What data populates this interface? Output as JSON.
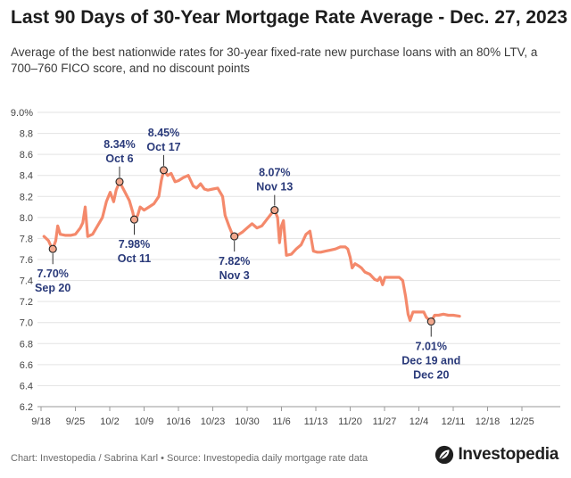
{
  "title": "Last 90 Days of 30-Year Mortgage Rate Average - Dec. 27, 2023",
  "subtitle": "Average of the best nationwide rates for 30-year fixed-rate new purchase loans with an 80% LTV, a 700–760 FICO score, and no discount points",
  "footer": {
    "source": "Chart: Investopedia / Sabrina Karl • Source: Investopedia daily mortgage rate data",
    "logo": "Investopedia",
    "logo_icon": "investopedia-leaf-icon"
  },
  "colors": {
    "line": "#f4896b",
    "annotation_text": "#2a3a7a",
    "marker_fill": "#f2a88d",
    "grid": "#e3e3e3"
  },
  "chart_data": {
    "type": "line",
    "title": "Last 90 Days of 30-Year Mortgage Rate Average - Dec. 27, 2023",
    "xlabel": "",
    "ylabel": "",
    "grid": true,
    "x_range_days": [
      0,
      101
    ],
    "ylim": [
      6.2,
      9.0
    ],
    "y_ticks": [
      6.2,
      6.4,
      6.6,
      6.8,
      7.0,
      7.2,
      7.4,
      7.6,
      7.8,
      8.0,
      8.2,
      8.4,
      8.6,
      8.8,
      9.0
    ],
    "y_tick_labels": [
      "6.2",
      "6.4",
      "6.6",
      "6.8",
      "7.0",
      "7.2",
      "7.4",
      "7.6",
      "7.8",
      "8.0",
      "8.2",
      "8.4",
      "8.6",
      "8.8",
      "9.0%"
    ],
    "x_ticks": [
      {
        "day": 0,
        "label": "9/18"
      },
      {
        "day": 7,
        "label": "9/25"
      },
      {
        "day": 14,
        "label": "10/2"
      },
      {
        "day": 21,
        "label": "10/9"
      },
      {
        "day": 28,
        "label": "10/16"
      },
      {
        "day": 35,
        "label": "10/23"
      },
      {
        "day": 42,
        "label": "10/30"
      },
      {
        "day": 49,
        "label": "11/6"
      },
      {
        "day": 56,
        "label": "11/13"
      },
      {
        "day": 63,
        "label": "11/20"
      },
      {
        "day": 70,
        "label": "11/27"
      },
      {
        "day": 77,
        "label": "12/4"
      },
      {
        "day": 84,
        "label": "12/11"
      },
      {
        "day": 91,
        "label": "12/18"
      },
      {
        "day": 98,
        "label": "12/25"
      }
    ],
    "series": [
      {
        "name": "30-Year Mortgage Rate Average",
        "points": [
          [
            0.6,
            7.82
          ],
          [
            1.5,
            7.78
          ],
          [
            2.1,
            7.72
          ],
          [
            2.4,
            7.7
          ],
          [
            3.0,
            7.78
          ],
          [
            3.4,
            7.92
          ],
          [
            3.9,
            7.84
          ],
          [
            5,
            7.83
          ],
          [
            6,
            7.83
          ],
          [
            7,
            7.84
          ],
          [
            8,
            7.9
          ],
          [
            8.5,
            7.95
          ],
          [
            9.0,
            8.1
          ],
          [
            9.5,
            7.82
          ],
          [
            10.5,
            7.84
          ],
          [
            11.5,
            7.92
          ],
          [
            12.5,
            8.0
          ],
          [
            13.3,
            8.15
          ],
          [
            14.1,
            8.24
          ],
          [
            14.8,
            8.15
          ],
          [
            15.3,
            8.26
          ],
          [
            16.0,
            8.34
          ],
          [
            17,
            8.25
          ],
          [
            18,
            8.16
          ],
          [
            18.7,
            8.05
          ],
          [
            19,
            7.98
          ],
          [
            19.7,
            8.02
          ],
          [
            20.2,
            8.1
          ],
          [
            21,
            8.07
          ],
          [
            22,
            8.1
          ],
          [
            23,
            8.13
          ],
          [
            24,
            8.2
          ],
          [
            24.5,
            8.35
          ],
          [
            25.0,
            8.45
          ],
          [
            25.8,
            8.4
          ],
          [
            26.5,
            8.42
          ],
          [
            27.3,
            8.34
          ],
          [
            28,
            8.35
          ],
          [
            29,
            8.38
          ],
          [
            30,
            8.4
          ],
          [
            31,
            8.3
          ],
          [
            31.7,
            8.28
          ],
          [
            32.5,
            8.32
          ],
          [
            33.3,
            8.27
          ],
          [
            34,
            8.26
          ],
          [
            35,
            8.27
          ],
          [
            36,
            8.28
          ],
          [
            37,
            8.2
          ],
          [
            37.5,
            8.02
          ],
          [
            38.3,
            7.92
          ],
          [
            38.9,
            7.85
          ],
          [
            39.4,
            7.82
          ],
          [
            40,
            7.83
          ],
          [
            41,
            7.86
          ],
          [
            42,
            7.9
          ],
          [
            43,
            7.94
          ],
          [
            44,
            7.9
          ],
          [
            45,
            7.92
          ],
          [
            46,
            7.98
          ],
          [
            47,
            8.04
          ],
          [
            47.6,
            8.07
          ],
          [
            48.2,
            8.0
          ],
          [
            48.6,
            7.76
          ],
          [
            49.0,
            7.92
          ],
          [
            49.4,
            7.97
          ],
          [
            50,
            7.64
          ],
          [
            51,
            7.65
          ],
          [
            52,
            7.7
          ],
          [
            53,
            7.74
          ],
          [
            54,
            7.84
          ],
          [
            54.8,
            7.87
          ],
          [
            55.5,
            7.68
          ],
          [
            56.3,
            7.67
          ],
          [
            57,
            7.67
          ],
          [
            58,
            7.68
          ],
          [
            59,
            7.69
          ],
          [
            60,
            7.7
          ],
          [
            61,
            7.72
          ],
          [
            62,
            7.72
          ],
          [
            62.5,
            7.7
          ],
          [
            63,
            7.62
          ],
          [
            63.4,
            7.52
          ],
          [
            64,
            7.56
          ],
          [
            64.7,
            7.54
          ],
          [
            65.3,
            7.52
          ],
          [
            66,
            7.48
          ],
          [
            67,
            7.46
          ],
          [
            68,
            7.41
          ],
          [
            68.6,
            7.4
          ],
          [
            69.1,
            7.43
          ],
          [
            69.6,
            7.36
          ],
          [
            70.1,
            7.43
          ],
          [
            71,
            7.43
          ],
          [
            72,
            7.43
          ],
          [
            73,
            7.43
          ],
          [
            73.7,
            7.4
          ],
          [
            74.3,
            7.25
          ],
          [
            74.8,
            7.08
          ],
          [
            75.2,
            7.02
          ],
          [
            75.8,
            7.1
          ],
          [
            77,
            7.1
          ],
          [
            78,
            7.1
          ],
          [
            78.5,
            7.05
          ],
          [
            79.0,
            7.03
          ],
          [
            79.5,
            7.01
          ],
          [
            80.2,
            7.07
          ],
          [
            81,
            7.07
          ],
          [
            82,
            7.08
          ],
          [
            83,
            7.07
          ],
          [
            84,
            7.07
          ],
          [
            85.3,
            7.06
          ]
        ]
      }
    ],
    "annotations": [
      {
        "day": 2.4,
        "value": 7.7,
        "value_label": "7.70%",
        "date_label": "Sep 20",
        "position": "below"
      },
      {
        "day": 16.0,
        "value": 8.34,
        "value_label": "8.34%",
        "date_label": "Oct 6",
        "position": "above"
      },
      {
        "day": 19.0,
        "value": 7.98,
        "value_label": "7.98%",
        "date_label": "Oct 11",
        "position": "below"
      },
      {
        "day": 25.0,
        "value": 8.45,
        "value_label": "8.45%",
        "date_label": "Oct 17",
        "position": "above"
      },
      {
        "day": 39.4,
        "value": 7.82,
        "value_label": "7.82%",
        "date_label": "Nov 3",
        "position": "below"
      },
      {
        "day": 47.6,
        "value": 8.07,
        "value_label": "8.07%",
        "date_label": "Nov 13",
        "position": "above"
      },
      {
        "day": 79.5,
        "value": 7.01,
        "value_label": "7.01%",
        "date_label": "Dec 19 and Dec 20",
        "date_lines": [
          "Dec 19 and",
          "Dec 20"
        ],
        "position": "below"
      }
    ]
  }
}
